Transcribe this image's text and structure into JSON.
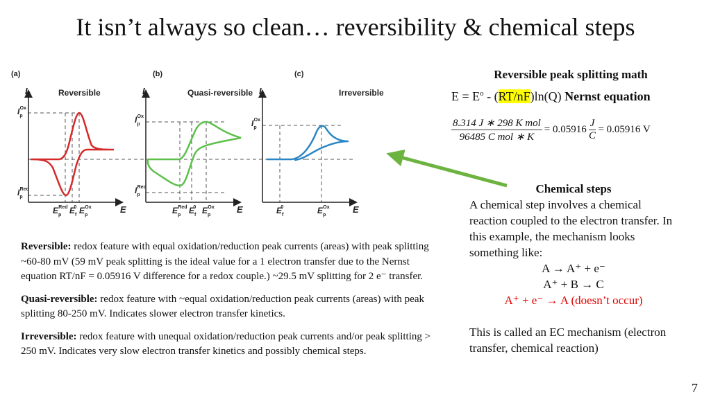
{
  "title": "It isn’t always so clean… reversibility & chemical steps",
  "figure": {
    "panels": [
      {
        "tag": "(a)",
        "title": "Reversible",
        "color": "#d42a2a",
        "x_labels": [
          "E_p^Red",
          "E_f^0",
          "E_p^Ox"
        ],
        "y_labels": [
          "I_p^Ox",
          "I_p^Red"
        ]
      },
      {
        "tag": "(b)",
        "title": "Quasi-reversible",
        "color": "#5cc04a",
        "x_labels": [
          "E_p^Red",
          "E_f^0",
          "E_p^Ox"
        ],
        "y_labels": [
          "I_p^Ox",
          "I_p^Red"
        ]
      },
      {
        "tag": "(c)",
        "title": "Irreversible",
        "color": "#2a86c4",
        "x_labels": [
          "E_f^0",
          "E_p^Ox"
        ],
        "y_labels": [
          "I_p^Ox"
        ]
      }
    ],
    "axis_y": "I",
    "axis_x": "E",
    "arrow_color": "#6db33f"
  },
  "math": {
    "title": "Reversible peak splitting math",
    "nernst_pre": "E = E",
    "nernst_sup": "o",
    "nernst_mid": " - (",
    "nernst_hl": "RT/nF",
    "nernst_post": ")ln(Q) ",
    "nernst_label": "Nernst equation",
    "num": "8.314 J ∗ 298 K mol",
    "den": "96485 C mol ∗ K",
    "eq1": "= 0.05916",
    "unit_num": "J",
    "unit_den": "C",
    "eq2": "= 0.05916 V"
  },
  "chem": {
    "heading": "Chemical steps",
    "body": "A chemical step involves a chemical reaction coupled to the electron transfer. In this example, the mechanism looks something like:",
    "r1": "A → A⁺ + e⁻",
    "r2": "A⁺ + B → C",
    "r3": "A⁺ + e⁻ → A (doesn’t occur)",
    "footer": "This is called an EC mechanism (electron transfer, chemical reaction)"
  },
  "left": [
    {
      "bold": "Reversible:",
      "text": " redox feature with equal oxidation/reduction peak currents (areas) with peak splitting ~60-80 mV (59 mV peak splitting is the ideal value for a 1 electron transfer due to the Nernst equation RT/nF = 0.05916 V difference for a redox couple.) ~29.5 mV splitting for 2 e⁻ transfer."
    },
    {
      "bold": "Quasi-reversible:",
      "text": " redox feature with ~equal oxidation/reduction peak currents (areas) with peak splitting 80-250 mV. Indicates slower electron transfer kinetics."
    },
    {
      "bold": "Irreversible:",
      "text": " redox feature with unequal oxidation/reduction peak currents and/or peak splitting > 250 mV. Indicates very slow electron transfer kinetics and possibly chemical steps."
    }
  ],
  "page_number": "7"
}
